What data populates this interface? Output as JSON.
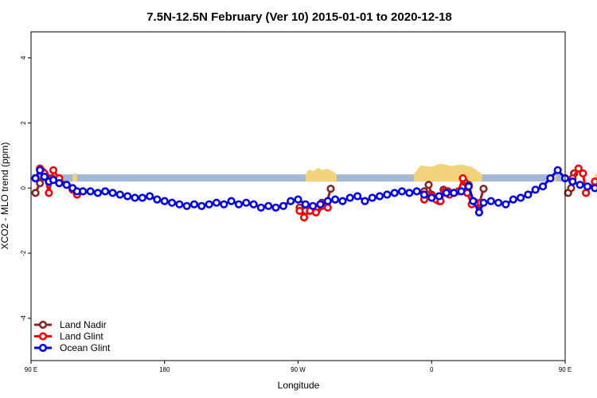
{
  "chart_data": {
    "type": "line",
    "title": "7.5N-12.5N February (Ver 10)   2015-01-01 to 2020-12-18",
    "xlabel": "Longitude",
    "ylabel": "XCO2 - MLO trend (ppm)",
    "xlim": [
      90,
      450
    ],
    "ylim": [
      -5.3,
      4.8
    ],
    "x_ticks": [
      {
        "value": 90,
        "label": "90 E"
      },
      {
        "value": 180,
        "label": "180"
      },
      {
        "value": 270,
        "label": "90 W"
      },
      {
        "value": 360,
        "label": "0"
      },
      {
        "value": 450,
        "label": "90 E"
      },
      {
        "value": 540,
        "label": "180"
      }
    ],
    "y_ticks": [
      {
        "value": -4,
        "label": "-4"
      },
      {
        "value": -2,
        "label": "-2"
      },
      {
        "value": 0,
        "label": "0"
      },
      {
        "value": 2,
        "label": "2"
      },
      {
        "value": 4,
        "label": "4"
      }
    ],
    "legend_position": "bottom-left",
    "land_band": {
      "y_bottom": 0.2,
      "y_top": 0.42,
      "ocean_color": "#a3b8d6",
      "land_color": "#f2d27a",
      "land_segments": [
        {
          "x": [
            118,
            121
          ],
          "peak": 0.5
        },
        {
          "x": [
            275,
            296
          ],
          "peak": 0.62
        },
        {
          "x": [
            348,
            394
          ],
          "peak": 0.75
        },
        {
          "x": [
            441,
            444
          ],
          "peak": 0.55
        },
        {
          "x": [
            470,
            476
          ],
          "peak": 0.5
        },
        {
          "x": [
            489,
            492
          ],
          "peak": 0.5
        }
      ]
    },
    "series": [
      {
        "name": "Land Nadir",
        "color": "#8b2525",
        "segments": [
          {
            "x": [
              93,
              96,
              98,
              100,
              104
            ],
            "y": [
              -0.15,
              0.15,
              0.5,
              0.35,
              0.3
            ]
          },
          {
            "x": [
              271,
              275,
              279,
              283,
              286,
              289,
              292
            ],
            "y": [
              -0.6,
              -0.7,
              -0.6,
              -0.65,
              -0.45,
              -0.5,
              -0.02
            ]
          },
          {
            "x": [
              355,
              358,
              360,
              362,
              365,
              368,
              371
            ],
            "y": [
              -0.1,
              0.1,
              -0.2,
              -0.3,
              -0.4,
              -0.05,
              -0.1
            ]
          },
          {
            "x": [
              382,
              385,
              388,
              392,
              395
            ],
            "y": [
              0.2,
              0.1,
              -0.4,
              -0.5,
              -0.02
            ]
          },
          {
            "x": [
              452,
              454,
              456
            ],
            "y": [
              -0.15,
              0.0,
              0.45
            ]
          }
        ]
      },
      {
        "name": "Land Glint",
        "color": "#ff0000",
        "segments": [
          {
            "x": [
              93,
              96,
              99,
              102,
              105,
              109,
              114,
              118,
              121
            ],
            "y": [
              0.3,
              0.6,
              0.45,
              -0.15,
              0.55,
              0.3,
              0.1,
              -0.05,
              -0.2
            ]
          },
          {
            "x": [
              271,
              274,
              278,
              282,
              286,
              290
            ],
            "y": [
              -0.7,
              -0.9,
              -0.7,
              -0.75,
              -0.55,
              -0.6
            ]
          },
          {
            "x": [
              355,
              357,
              360,
              363,
              366,
              369,
              372,
              375,
              378,
              381,
              384,
              387,
              390,
              393
            ],
            "y": [
              -0.35,
              -0.2,
              -0.25,
              -0.35,
              -0.4,
              -0.1,
              -0.2,
              -0.15,
              -0.1,
              0.3,
              -0.15,
              -0.5,
              -0.45,
              -0.45
            ]
          },
          {
            "x": [
              455,
              459,
              462,
              464,
              470,
              474,
              478,
              481
            ],
            "y": [
              0.3,
              0.6,
              0.45,
              -0.15,
              0.2,
              0.1,
              0.0,
              -0.2
            ]
          }
        ]
      },
      {
        "name": "Ocean Glint",
        "color": "#0000ee",
        "segments": [
          {
            "x": [
              93,
              96,
              99,
              102,
              105,
              109,
              114,
              118,
              121,
              125,
              130,
              135,
              140,
              145,
              150,
              155,
              160,
              165,
              170,
              175,
              180,
              185,
              190,
              195,
              200,
              205,
              210,
              215,
              220,
              225,
              230,
              235,
              240,
              245,
              250,
              255,
              260,
              265,
              270,
              275,
              280,
              285,
              290,
              295,
              300,
              305,
              310,
              315,
              320,
              325,
              330,
              335,
              340,
              345,
              350,
              355,
              360,
              365,
              370,
              375,
              380,
              385,
              388,
              392,
              395,
              400,
              405,
              410,
              415,
              420,
              425,
              430,
              435,
              440,
              445,
              450,
              455,
              460,
              465,
              470,
              475,
              480,
              485,
              490,
              495,
              500,
              505,
              510,
              515,
              520,
              525
            ],
            "y": [
              0.3,
              0.55,
              0.35,
              0.2,
              0.25,
              0.15,
              0.1,
              0.0,
              -0.1,
              -0.1,
              -0.1,
              -0.15,
              -0.1,
              -0.15,
              -0.2,
              -0.25,
              -0.3,
              -0.3,
              -0.25,
              -0.35,
              -0.4,
              -0.45,
              -0.5,
              -0.55,
              -0.5,
              -0.55,
              -0.5,
              -0.45,
              -0.5,
              -0.4,
              -0.5,
              -0.45,
              -0.5,
              -0.6,
              -0.55,
              -0.6,
              -0.55,
              -0.4,
              -0.35,
              -0.5,
              -0.55,
              -0.5,
              -0.4,
              -0.35,
              -0.4,
              -0.3,
              -0.25,
              -0.4,
              -0.3,
              -0.25,
              -0.2,
              -0.15,
              -0.1,
              -0.15,
              -0.1,
              -0.2,
              -0.3,
              -0.25,
              -0.15,
              -0.15,
              -0.1,
              0.05,
              -0.4,
              -0.75,
              -0.45,
              -0.4,
              -0.45,
              -0.5,
              -0.35,
              -0.3,
              -0.2,
              -0.05,
              0.05,
              0.3,
              0.55,
              0.3,
              0.2,
              0.1,
              0.05,
              0.0,
              -0.1,
              -0.15,
              -0.15,
              -0.1,
              -0.15,
              -0.2,
              -0.25,
              -0.3,
              -0.3,
              -0.35,
              -0.25
            ]
          }
        ]
      }
    ]
  }
}
